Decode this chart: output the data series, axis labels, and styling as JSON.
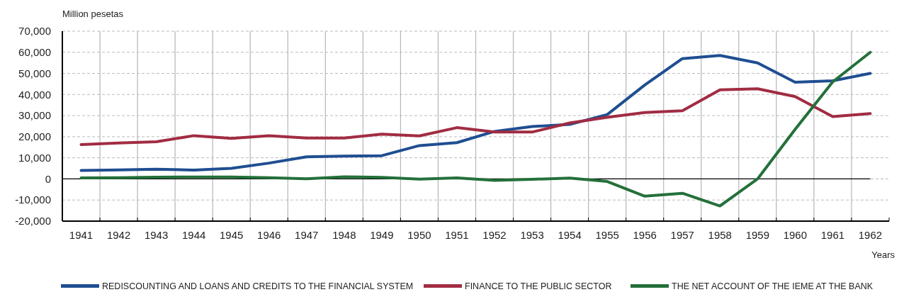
{
  "chart_data": {
    "type": "line",
    "ylabel": "Million pesetas",
    "xlabel": "Years",
    "categories": [
      "1941",
      "1942",
      "1943",
      "1944",
      "1945",
      "1946",
      "1947",
      "1948",
      "1949",
      "1950",
      "1951",
      "1952",
      "1953",
      "1954",
      "1955",
      "1956",
      "1957",
      "1958",
      "1959",
      "1960",
      "1961",
      "1962"
    ],
    "series": [
      {
        "name": "REDISCOUNTING AND LOANS AND CREDITS TO THE FINANCIAL SYSTEM",
        "color": "#1f4e91",
        "values": [
          4000,
          4300,
          4600,
          4200,
          5000,
          7500,
          10500,
          10800,
          11000,
          15800,
          17200,
          22500,
          24800,
          25800,
          30500,
          44500,
          57000,
          58500,
          55000,
          45800,
          46500,
          50000
        ]
      },
      {
        "name": "FINANCE TO THE PUBLIC SECTOR",
        "color": "#a12c42",
        "values": [
          16300,
          17000,
          17600,
          20500,
          19200,
          20500,
          19400,
          19400,
          21200,
          20400,
          24300,
          22200,
          22200,
          26500,
          29200,
          31500,
          32300,
          42200,
          42700,
          39000,
          29500,
          31000
        ]
      },
      {
        "name": "THE NET ACCOUNT OF THE IEME AT THE BANK",
        "color": "#23703a",
        "values": [
          500,
          600,
          800,
          900,
          900,
          600,
          100,
          1000,
          700,
          -100,
          500,
          -700,
          -200,
          400,
          -1200,
          -8200,
          -6800,
          -12800,
          0,
          23500,
          46000,
          60000
        ]
      }
    ],
    "ylim": [
      -20000,
      70000
    ],
    "yticks": [
      {
        "value": -20000,
        "label": "-20,000"
      },
      {
        "value": -10000,
        "label": "-10,000"
      },
      0,
      {
        "value": 10000,
        "label": "10,000"
      },
      {
        "value": 20000,
        "label": "20,000"
      },
      {
        "value": 30000,
        "label": "30,000"
      },
      {
        "value": 40000,
        "label": "40,000"
      },
      {
        "value": 50000,
        "label": "50,000"
      },
      {
        "value": 60000,
        "label": "60,000"
      },
      {
        "value": 70000,
        "label": "70,000"
      }
    ],
    "ref_lines": [
      {
        "axis": "y",
        "value": 0,
        "color": "#000000"
      }
    ],
    "grid": true,
    "legend": "bottom",
    "line_style": "solid",
    "marker": "none"
  }
}
